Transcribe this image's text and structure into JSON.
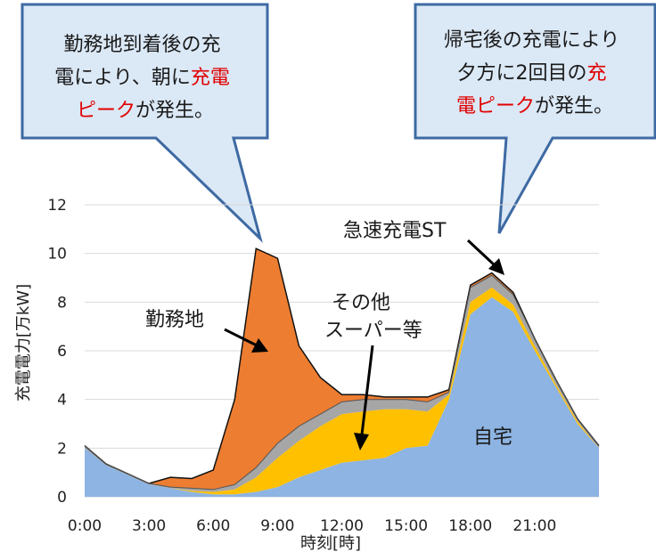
{
  "chart_data": {
    "type": "area",
    "stacked": true,
    "x": [
      0,
      1,
      2,
      3,
      4,
      5,
      6,
      7,
      8,
      9,
      10,
      11,
      12,
      13,
      14,
      15,
      16,
      17,
      18,
      19,
      20,
      21,
      22,
      23,
      24
    ],
    "xlabel": "時刻[時]",
    "ylabel": "充電電力[万kW]",
    "xlim": [
      0,
      24
    ],
    "ylim": [
      0,
      12
    ],
    "xticks": [
      {
        "value": 0,
        "label": "0:00"
      },
      {
        "value": 3,
        "label": "3:00"
      },
      {
        "value": 6,
        "label": "6:00"
      },
      {
        "value": 9,
        "label": "9:00"
      },
      {
        "value": 12,
        "label": "12:00"
      },
      {
        "value": 15,
        "label": "15:00"
      },
      {
        "value": 18,
        "label": "18:00"
      },
      {
        "value": 21,
        "label": "21:00"
      }
    ],
    "yticks": [
      0,
      2,
      4,
      6,
      8,
      10,
      12
    ],
    "grid": "horizontal",
    "series": [
      {
        "name": "自宅",
        "color": "#8db4e2",
        "values": [
          2.0,
          1.3,
          0.9,
          0.5,
          0.35,
          0.2,
          0.1,
          0.1,
          0.2,
          0.4,
          0.8,
          1.1,
          1.4,
          1.5,
          1.6,
          2.0,
          2.1,
          4.0,
          7.5,
          8.2,
          7.6,
          6.0,
          4.5,
          3.0,
          2.0
        ]
      },
      {
        "name": "その他\nスーパー等",
        "color": "#ffc000",
        "values": [
          0.0,
          0.0,
          0.0,
          0.0,
          0.0,
          0.05,
          0.1,
          0.2,
          0.6,
          1.2,
          1.5,
          1.8,
          2.0,
          2.0,
          2.0,
          1.6,
          1.4,
          0.2,
          0.5,
          0.4,
          0.3,
          0.2,
          0.1,
          0.1,
          0.0
        ]
      },
      {
        "name": "急速充電ST",
        "color": "#a6a6a6",
        "values": [
          0.1,
          0.05,
          0.05,
          0.05,
          0.05,
          0.1,
          0.1,
          0.2,
          0.4,
          0.6,
          0.6,
          0.5,
          0.5,
          0.5,
          0.4,
          0.4,
          0.4,
          0.1,
          0.6,
          0.5,
          0.4,
          0.3,
          0.2,
          0.1,
          0.1
        ]
      },
      {
        "name": "勤務地",
        "color": "#ed7d31",
        "values": [
          0.0,
          0.0,
          0.0,
          0.0,
          0.4,
          0.4,
          0.8,
          3.5,
          9.0,
          7.6,
          3.3,
          1.5,
          0.3,
          0.2,
          0.1,
          0.1,
          0.2,
          0.1,
          0.1,
          0.1,
          0.1,
          0.0,
          0.0,
          0.0,
          0.0
        ]
      }
    ],
    "annotations": {
      "work": "勤務地",
      "other": "その他\nスーパー等",
      "fast": "急速充電ST",
      "home": "自宅"
    }
  },
  "callouts": [
    {
      "lines": [
        [
          {
            "t": "勤務地到着後の充",
            "hl": false
          }
        ],
        [
          {
            "t": "電により、朝に",
            "hl": false
          },
          {
            "t": "充電",
            "hl": true
          }
        ],
        [
          {
            "t": "ピーク",
            "hl": true
          },
          {
            "t": "が発生。",
            "hl": false
          }
        ]
      ]
    },
    {
      "lines": [
        [
          {
            "t": "帰宅後の充電により",
            "hl": false
          }
        ],
        [
          {
            "t": "夕方に2回目の",
            "hl": false
          },
          {
            "t": "充",
            "hl": true
          }
        ],
        [
          {
            "t": "電ピーク",
            "hl": true
          },
          {
            "t": "が発生。",
            "hl": false
          }
        ]
      ]
    }
  ],
  "colors": {
    "callout_fill": "#dbe8f6",
    "callout_stroke": "#3e6aa3",
    "highlight": "#e00000"
  }
}
